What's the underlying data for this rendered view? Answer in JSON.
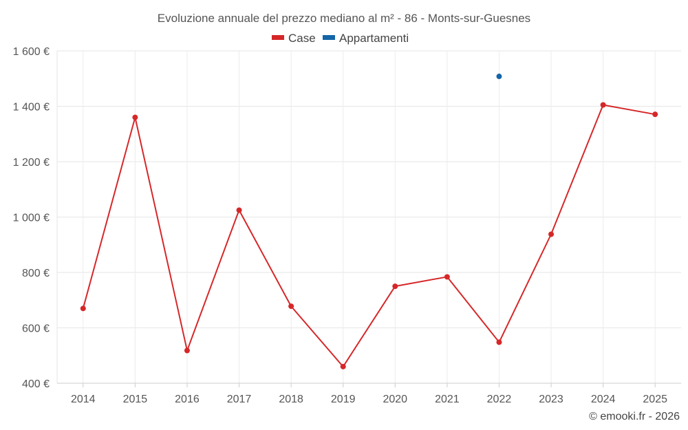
{
  "chart_data": {
    "type": "line",
    "title": "Evoluzione annuale del prezzo mediano al m² - 86 - Monts-sur-Guesnes",
    "categories": [
      "2014",
      "2015",
      "2016",
      "2017",
      "2018",
      "2019",
      "2020",
      "2021",
      "2022",
      "2023",
      "2024",
      "2025"
    ],
    "series": [
      {
        "name": "Case",
        "color": "#d62728",
        "values": [
          670,
          1360,
          518,
          1025,
          678,
          460,
          750,
          784,
          548,
          938,
          1405,
          1371
        ]
      },
      {
        "name": "Appartamenti",
        "color": "#1565a8",
        "values": [
          null,
          null,
          null,
          null,
          null,
          null,
          null,
          null,
          1508,
          null,
          null,
          null
        ]
      }
    ],
    "ylim": [
      400,
      1600
    ],
    "yticks": [
      400,
      600,
      800,
      1000,
      1200,
      1400,
      1600
    ],
    "ytick_labels": [
      "400 €",
      "600 €",
      "800 €",
      "1 000 €",
      "1 200 €",
      "1 400 €",
      "1 600 €"
    ],
    "xlabel": "",
    "ylabel": "",
    "grid": true,
    "legend_position": "top-center"
  },
  "credit": "© emooki.fr - 2026"
}
